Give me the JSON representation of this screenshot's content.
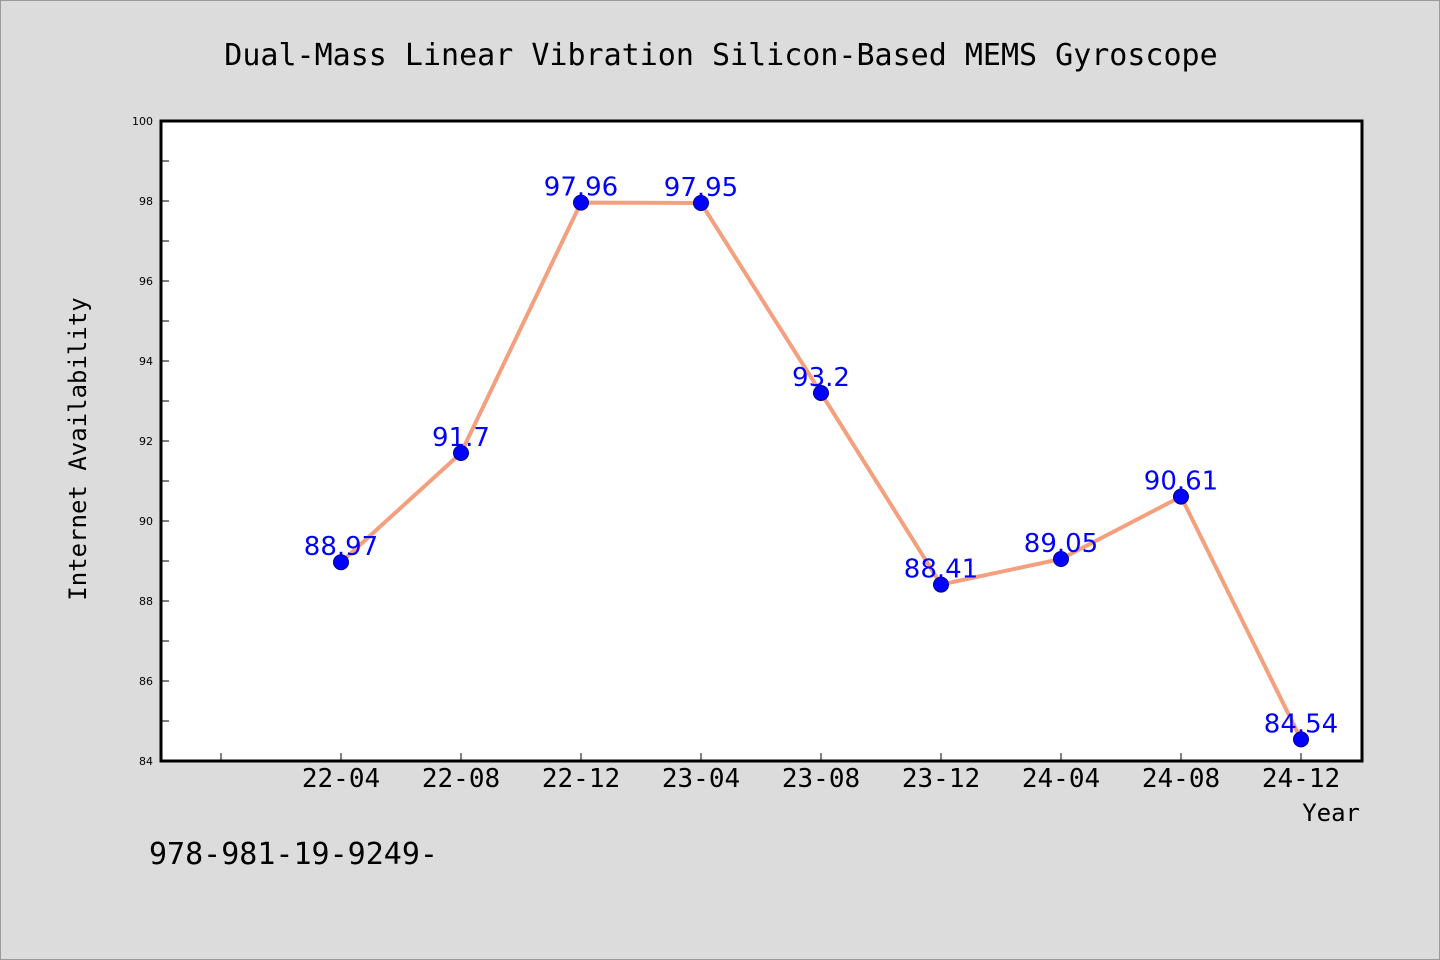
{
  "chart_data": {
    "type": "line",
    "title": "Dual-Mass Linear Vibration Silicon-Based MEMS Gyroscope",
    "xlabel": "Year",
    "ylabel": "Internet Availability",
    "categories": [
      "22-04",
      "22-08",
      "22-12",
      "23-04",
      "23-08",
      "23-12",
      "24-04",
      "24-08",
      "24-12"
    ],
    "values": [
      88.97,
      91.7,
      97.96,
      97.95,
      93.2,
      88.41,
      89.05,
      90.61,
      84.54
    ],
    "ylim": [
      84,
      100
    ],
    "yticks": [
      84,
      86,
      88,
      90,
      92,
      94,
      96,
      98,
      100
    ],
    "grid": false,
    "legend": "none",
    "colors": {
      "line": "#f4a07f",
      "marker": "#0000ff",
      "marker_edge": "#000080",
      "data_label": "#0000ff",
      "plot_background": "#ffffff",
      "figure_background": "#dcdcdc"
    }
  },
  "footnote": "978-981-19-9249-"
}
